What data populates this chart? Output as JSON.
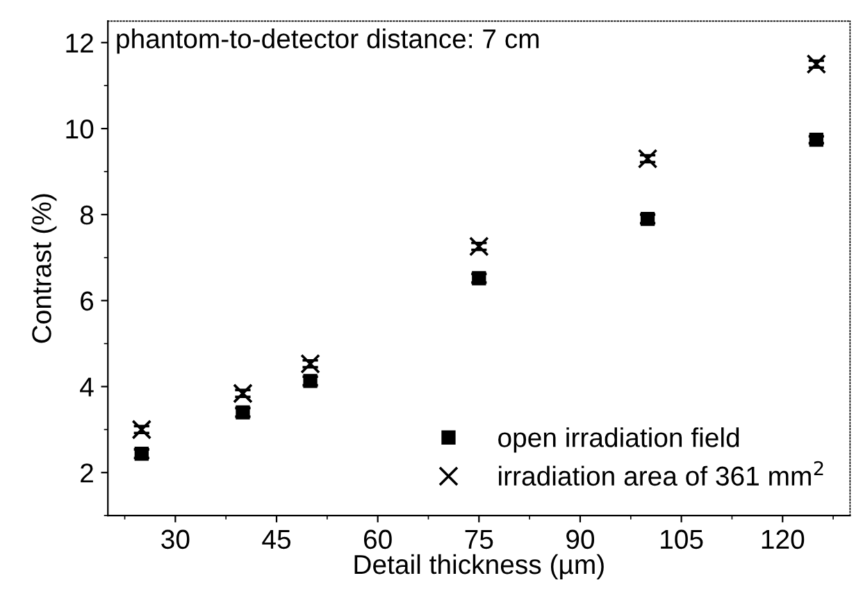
{
  "chart_data": {
    "type": "scatter",
    "xlabel": "Detail thickness (µm)",
    "ylabel": "Contrast (%)",
    "x": [
      25,
      40,
      50,
      75,
      100,
      125
    ],
    "series": [
      {
        "name": "open irradiation field",
        "color": "#000000",
        "marker": "square",
        "values": [
          2.44,
          3.4,
          4.13,
          6.52,
          7.9,
          9.74
        ],
        "errors": [
          0.1,
          0.1,
          0.1,
          0.1,
          0.1,
          0.08
        ]
      },
      {
        "name": "irradiation area of 361 mm$^{2}$",
        "color": "#000000",
        "marker": "cross",
        "values": [
          3.0,
          3.84,
          4.53,
          7.26,
          9.3,
          11.5
        ],
        "errors": [
          0.08,
          0.08,
          0.08,
          0.08,
          0.08,
          0.08
        ]
      }
    ],
    "xlim": [
      20,
      130
    ],
    "ylim": [
      1,
      12.5
    ],
    "xticks": [
      30,
      45,
      60,
      75,
      90,
      105,
      120
    ],
    "yticks": [
      2,
      4,
      6,
      8,
      10,
      12
    ],
    "legend": "bottom right",
    "grid": false,
    "annotations": [
      "phantom-to-detector distance: 7 cm"
    ]
  }
}
